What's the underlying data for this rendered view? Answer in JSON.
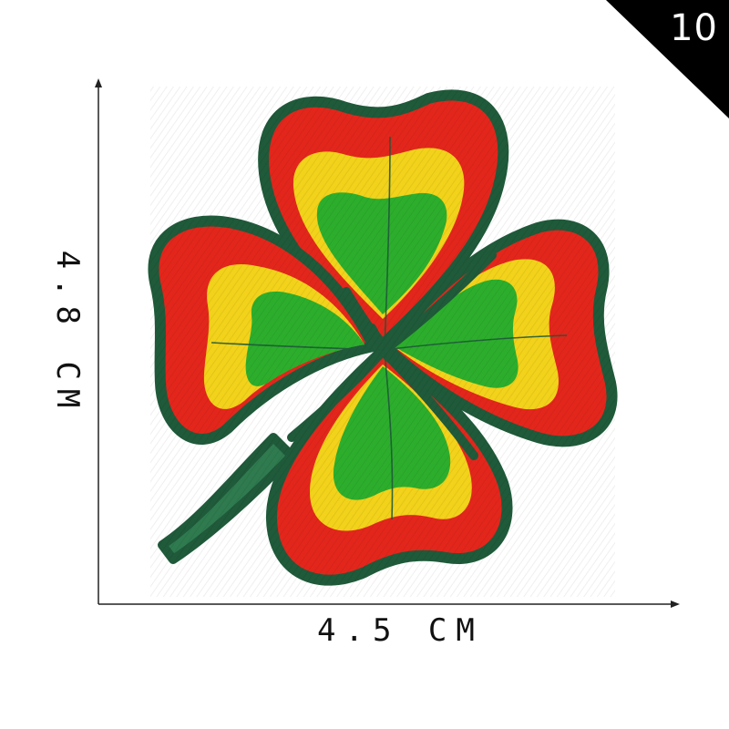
{
  "badge": {
    "number": "10"
  },
  "dimensions": {
    "width_label": "4.5 CM",
    "height_label": "4.8 CM"
  },
  "colors": {
    "outline": "#1f5a3a",
    "red": "#e3261c",
    "yellow": "#f2d21a",
    "green": "#2cae2c",
    "stem": "#1f5a3a"
  }
}
